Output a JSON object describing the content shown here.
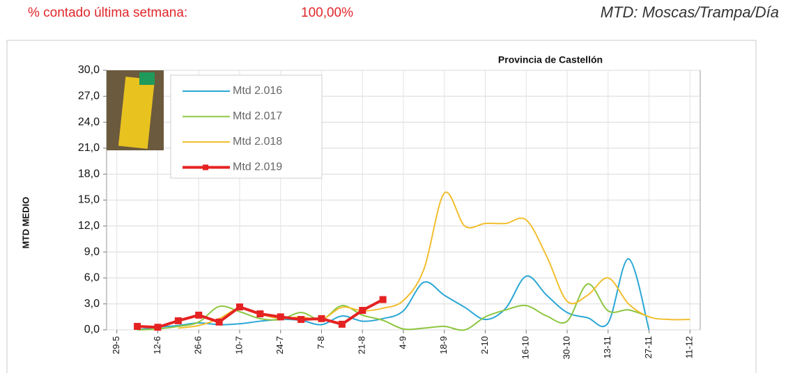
{
  "header": {
    "left_label": "% contado última setmana:",
    "left_value": "100,00%",
    "right": "MTD: Moscas/Trampa/Día"
  },
  "chart_data": {
    "type": "line",
    "title": "Provincia de Castellón",
    "y_label": "MTD MEDIO",
    "categories": [
      "29-5",
      null,
      "12-6",
      null,
      "26-6",
      null,
      "10-7",
      null,
      "24-7",
      null,
      "7-8",
      null,
      "21-8",
      null,
      "4-9",
      null,
      "18-9",
      null,
      "2-10",
      null,
      "16-10",
      null,
      "30-10",
      null,
      "13-11",
      null,
      "27-11",
      null,
      "11-12"
    ],
    "ylim": [
      0,
      30
    ],
    "yticks": [
      {
        "value": 0,
        "label": "0,0"
      },
      {
        "value": 3,
        "label": "3,0"
      },
      {
        "value": 6,
        "label": "6,0"
      },
      {
        "value": 9,
        "label": "9,0"
      },
      {
        "value": 12,
        "label": "12,0"
      },
      {
        "value": 15,
        "label": "15,0"
      },
      {
        "value": 18,
        "label": "18,0"
      },
      {
        "value": 21,
        "label": "21,0"
      },
      {
        "value": 24,
        "label": "24,0"
      },
      {
        "value": 27,
        "label": "27,0"
      },
      {
        "value": 30,
        "label": "30,0"
      }
    ],
    "grid": true,
    "series": [
      {
        "name": "Mtd 2.016",
        "color": "#2aa7d4",
        "smooth": true,
        "values": [
          null,
          0.0,
          0.3,
          0.5,
          0.8,
          0.6,
          0.7,
          1.0,
          1.2,
          1.1,
          0.6,
          1.6,
          1.0,
          1.3,
          2.2,
          5.5,
          4.0,
          2.6,
          1.2,
          2.5,
          6.2,
          4.0,
          2.0,
          1.4,
          0.8,
          8.2,
          0.0,
          null,
          null
        ]
      },
      {
        "name": "Mtd 2.017",
        "color": "#8cc63f",
        "smooth": true,
        "values": [
          null,
          0.0,
          0.1,
          0.4,
          0.9,
          2.7,
          2.1,
          1.3,
          1.2,
          2.0,
          1.2,
          2.8,
          1.7,
          1.1,
          0.1,
          0.2,
          0.4,
          0.0,
          1.5,
          2.3,
          2.8,
          1.6,
          1.0,
          5.3,
          2.2,
          2.3,
          1.5,
          null,
          null
        ]
      },
      {
        "name": "Mtd 2.018",
        "color": "#f2be2e",
        "smooth": true,
        "values": [
          null,
          null,
          null,
          0.2,
          0.5,
          1.3,
          2.5,
          1.8,
          1.3,
          1.5,
          1.2,
          2.6,
          2.2,
          2.5,
          3.4,
          7.0,
          15.8,
          12.0,
          12.3,
          12.3,
          12.7,
          8.5,
          3.3,
          4.0,
          6.0,
          3.0,
          1.5,
          1.2,
          1.2
        ]
      },
      {
        "name": "Mtd 2.019",
        "color": "#e52222",
        "smooth": false,
        "markers": true,
        "values": [
          null,
          0.4,
          0.3,
          1.05,
          1.7,
          0.9,
          2.65,
          1.85,
          1.5,
          1.2,
          1.3,
          0.65,
          2.25,
          3.5,
          null,
          null,
          null,
          null,
          null,
          null,
          null,
          null,
          null,
          null,
          null,
          null,
          null,
          null,
          null
        ]
      }
    ]
  }
}
